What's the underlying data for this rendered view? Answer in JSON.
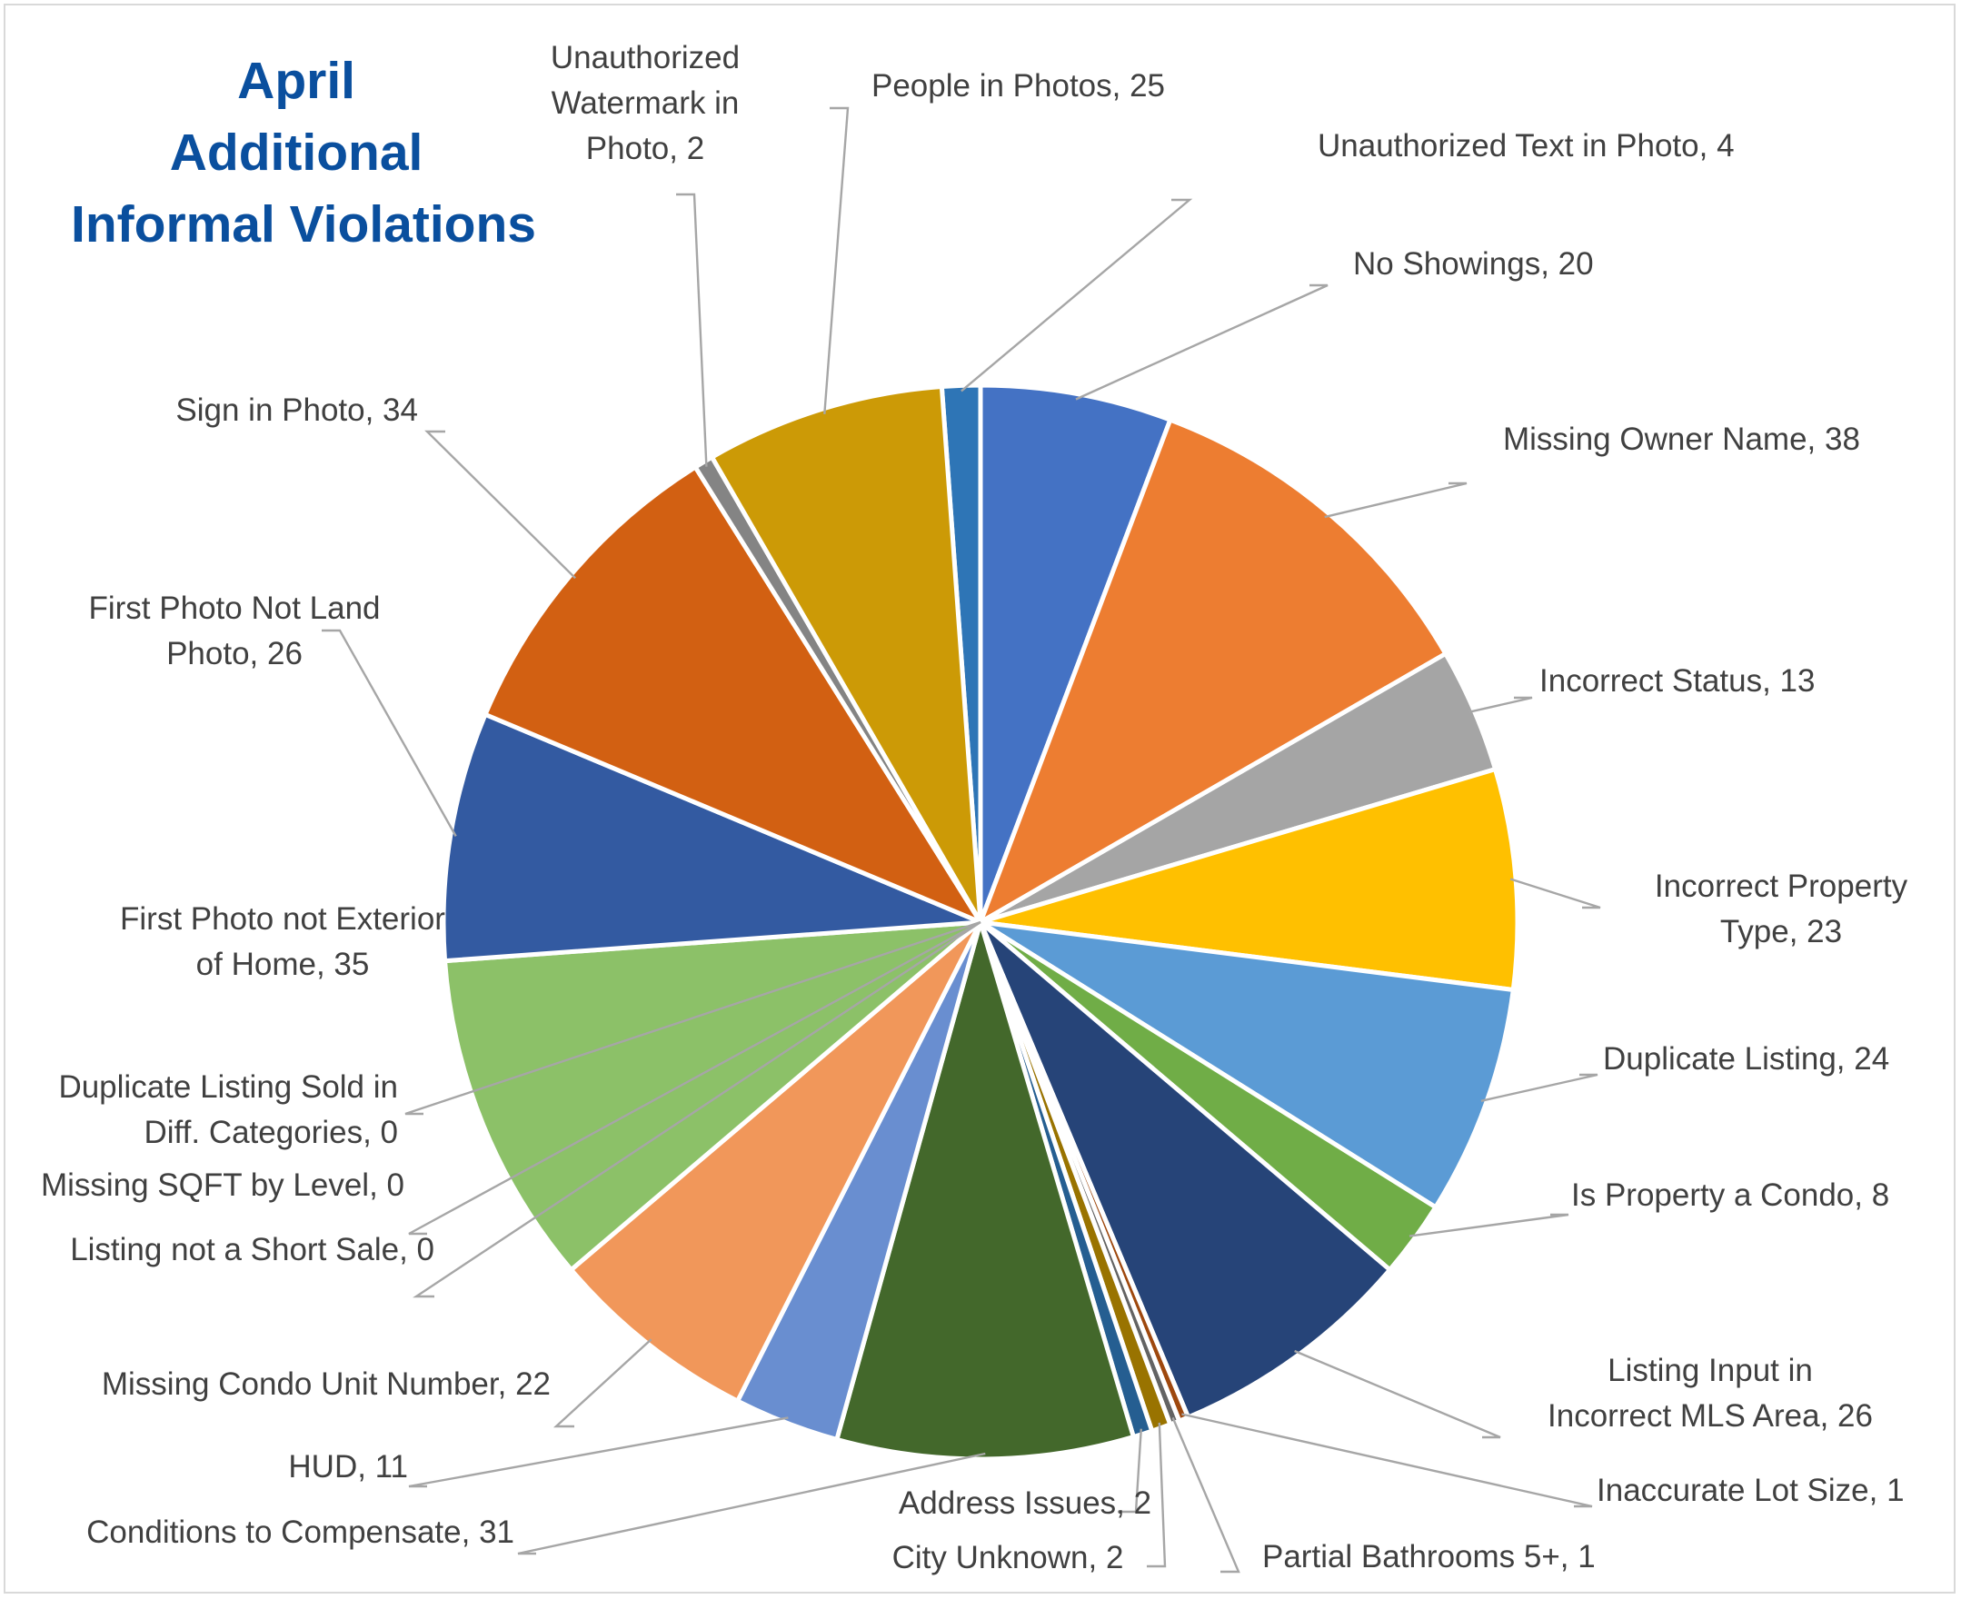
{
  "chart_data": {
    "type": "pie",
    "title": "April Additional Informal Violations",
    "title_lines": [
      "April",
      "Additional",
      "Informal Violations"
    ],
    "title_color": "#0a4f9e",
    "slices": [
      {
        "label": "Unauthorized Text in Photo",
        "value": 4,
        "color": "#2e75b6",
        "label_lines": [
          "Unauthorized Text in Photo, 4"
        ]
      },
      {
        "label": "No Showings",
        "value": 20,
        "color": "#4472c4",
        "label_lines": [
          "No Showings, 20"
        ]
      },
      {
        "label": "Missing Owner Name",
        "value": 38,
        "color": "#ed7d31",
        "label_lines": [
          "Missing Owner Name, 38"
        ]
      },
      {
        "label": "Incorrect Status",
        "value": 13,
        "color": "#a5a5a5",
        "label_lines": [
          "Incorrect Status, 13"
        ]
      },
      {
        "label": "Incorrect Property Type",
        "value": 23,
        "color": "#ffc000",
        "label_lines": [
          "Incorrect Property",
          "Type, 23"
        ]
      },
      {
        "label": "Duplicate Listing",
        "value": 24,
        "color": "#5b9bd5",
        "label_lines": [
          "Duplicate Listing, 24"
        ]
      },
      {
        "label": "Is Property a Condo",
        "value": 8,
        "color": "#70ad47",
        "label_lines": [
          "Is Property a Condo, 8"
        ]
      },
      {
        "label": "Listing Input in Incorrect MLS Area",
        "value": 26,
        "color": "#264478",
        "label_lines": [
          "Listing Input in",
          "Incorrect MLS Area, 26"
        ]
      },
      {
        "label": "Inaccurate Lot Size",
        "value": 1,
        "color": "#9e480e",
        "label_lines": [
          "Inaccurate Lot Size, 1"
        ]
      },
      {
        "label": "Partial Bathrooms 5+",
        "value": 1,
        "color": "#636363",
        "label_lines": [
          "Partial Bathrooms 5+, 1"
        ]
      },
      {
        "label": "City Unknown",
        "value": 2,
        "color": "#997300",
        "label_lines": [
          "City Unknown, 2"
        ]
      },
      {
        "label": "Address Issues",
        "value": 2,
        "color": "#255e91",
        "label_lines": [
          "Address Issues, 2"
        ]
      },
      {
        "label": "Conditions to Compensate",
        "value": 31,
        "color": "#43682b",
        "label_lines": [
          "Conditions to Compensate, 31"
        ]
      },
      {
        "label": "HUD",
        "value": 11,
        "color": "#698ed0",
        "label_lines": [
          "HUD, 11"
        ]
      },
      {
        "label": "Missing Condo Unit Number",
        "value": 22,
        "color": "#f1975a",
        "label_lines": [
          "Missing Condo Unit Number, 22"
        ]
      },
      {
        "label": "Listing not a Short Sale",
        "value": 0,
        "color": "#b7b7b7",
        "label_lines": [
          "Listing not a Short Sale, 0"
        ]
      },
      {
        "label": "Missing SQFT by Level",
        "value": 0,
        "color": "#ffcd33",
        "label_lines": [
          "Missing SQFT by Level, 0"
        ]
      },
      {
        "label": "Duplicate Listing Sold in Diff. Categories",
        "value": 0,
        "color": "#7cafdd",
        "label_lines": [
          "Duplicate Listing Sold in",
          "Diff. Categories, 0"
        ]
      },
      {
        "label": "First Photo not Exterior of Home",
        "value": 35,
        "color": "#8cc168",
        "label_lines": [
          "First Photo not Exterior",
          "of Home, 35"
        ]
      },
      {
        "label": "First Photo Not Land Photo",
        "value": 26,
        "color": "#335aa1",
        "label_lines": [
          "First Photo Not Land",
          "Photo, 26"
        ]
      },
      {
        "label": "Sign in Photo",
        "value": 34,
        "color": "#d26012",
        "label_lines": [
          "Sign in Photo, 34"
        ]
      },
      {
        "label": "Unauthorized Watermark in Photo",
        "value": 2,
        "color": "#848484",
        "label_lines": [
          "Unauthorized",
          "Watermark in",
          "Photo, 2"
        ]
      },
      {
        "label": "People in Photos",
        "value": 25,
        "color": "#cc9a06",
        "label_lines": [
          "People in Photos, 25"
        ]
      }
    ]
  }
}
